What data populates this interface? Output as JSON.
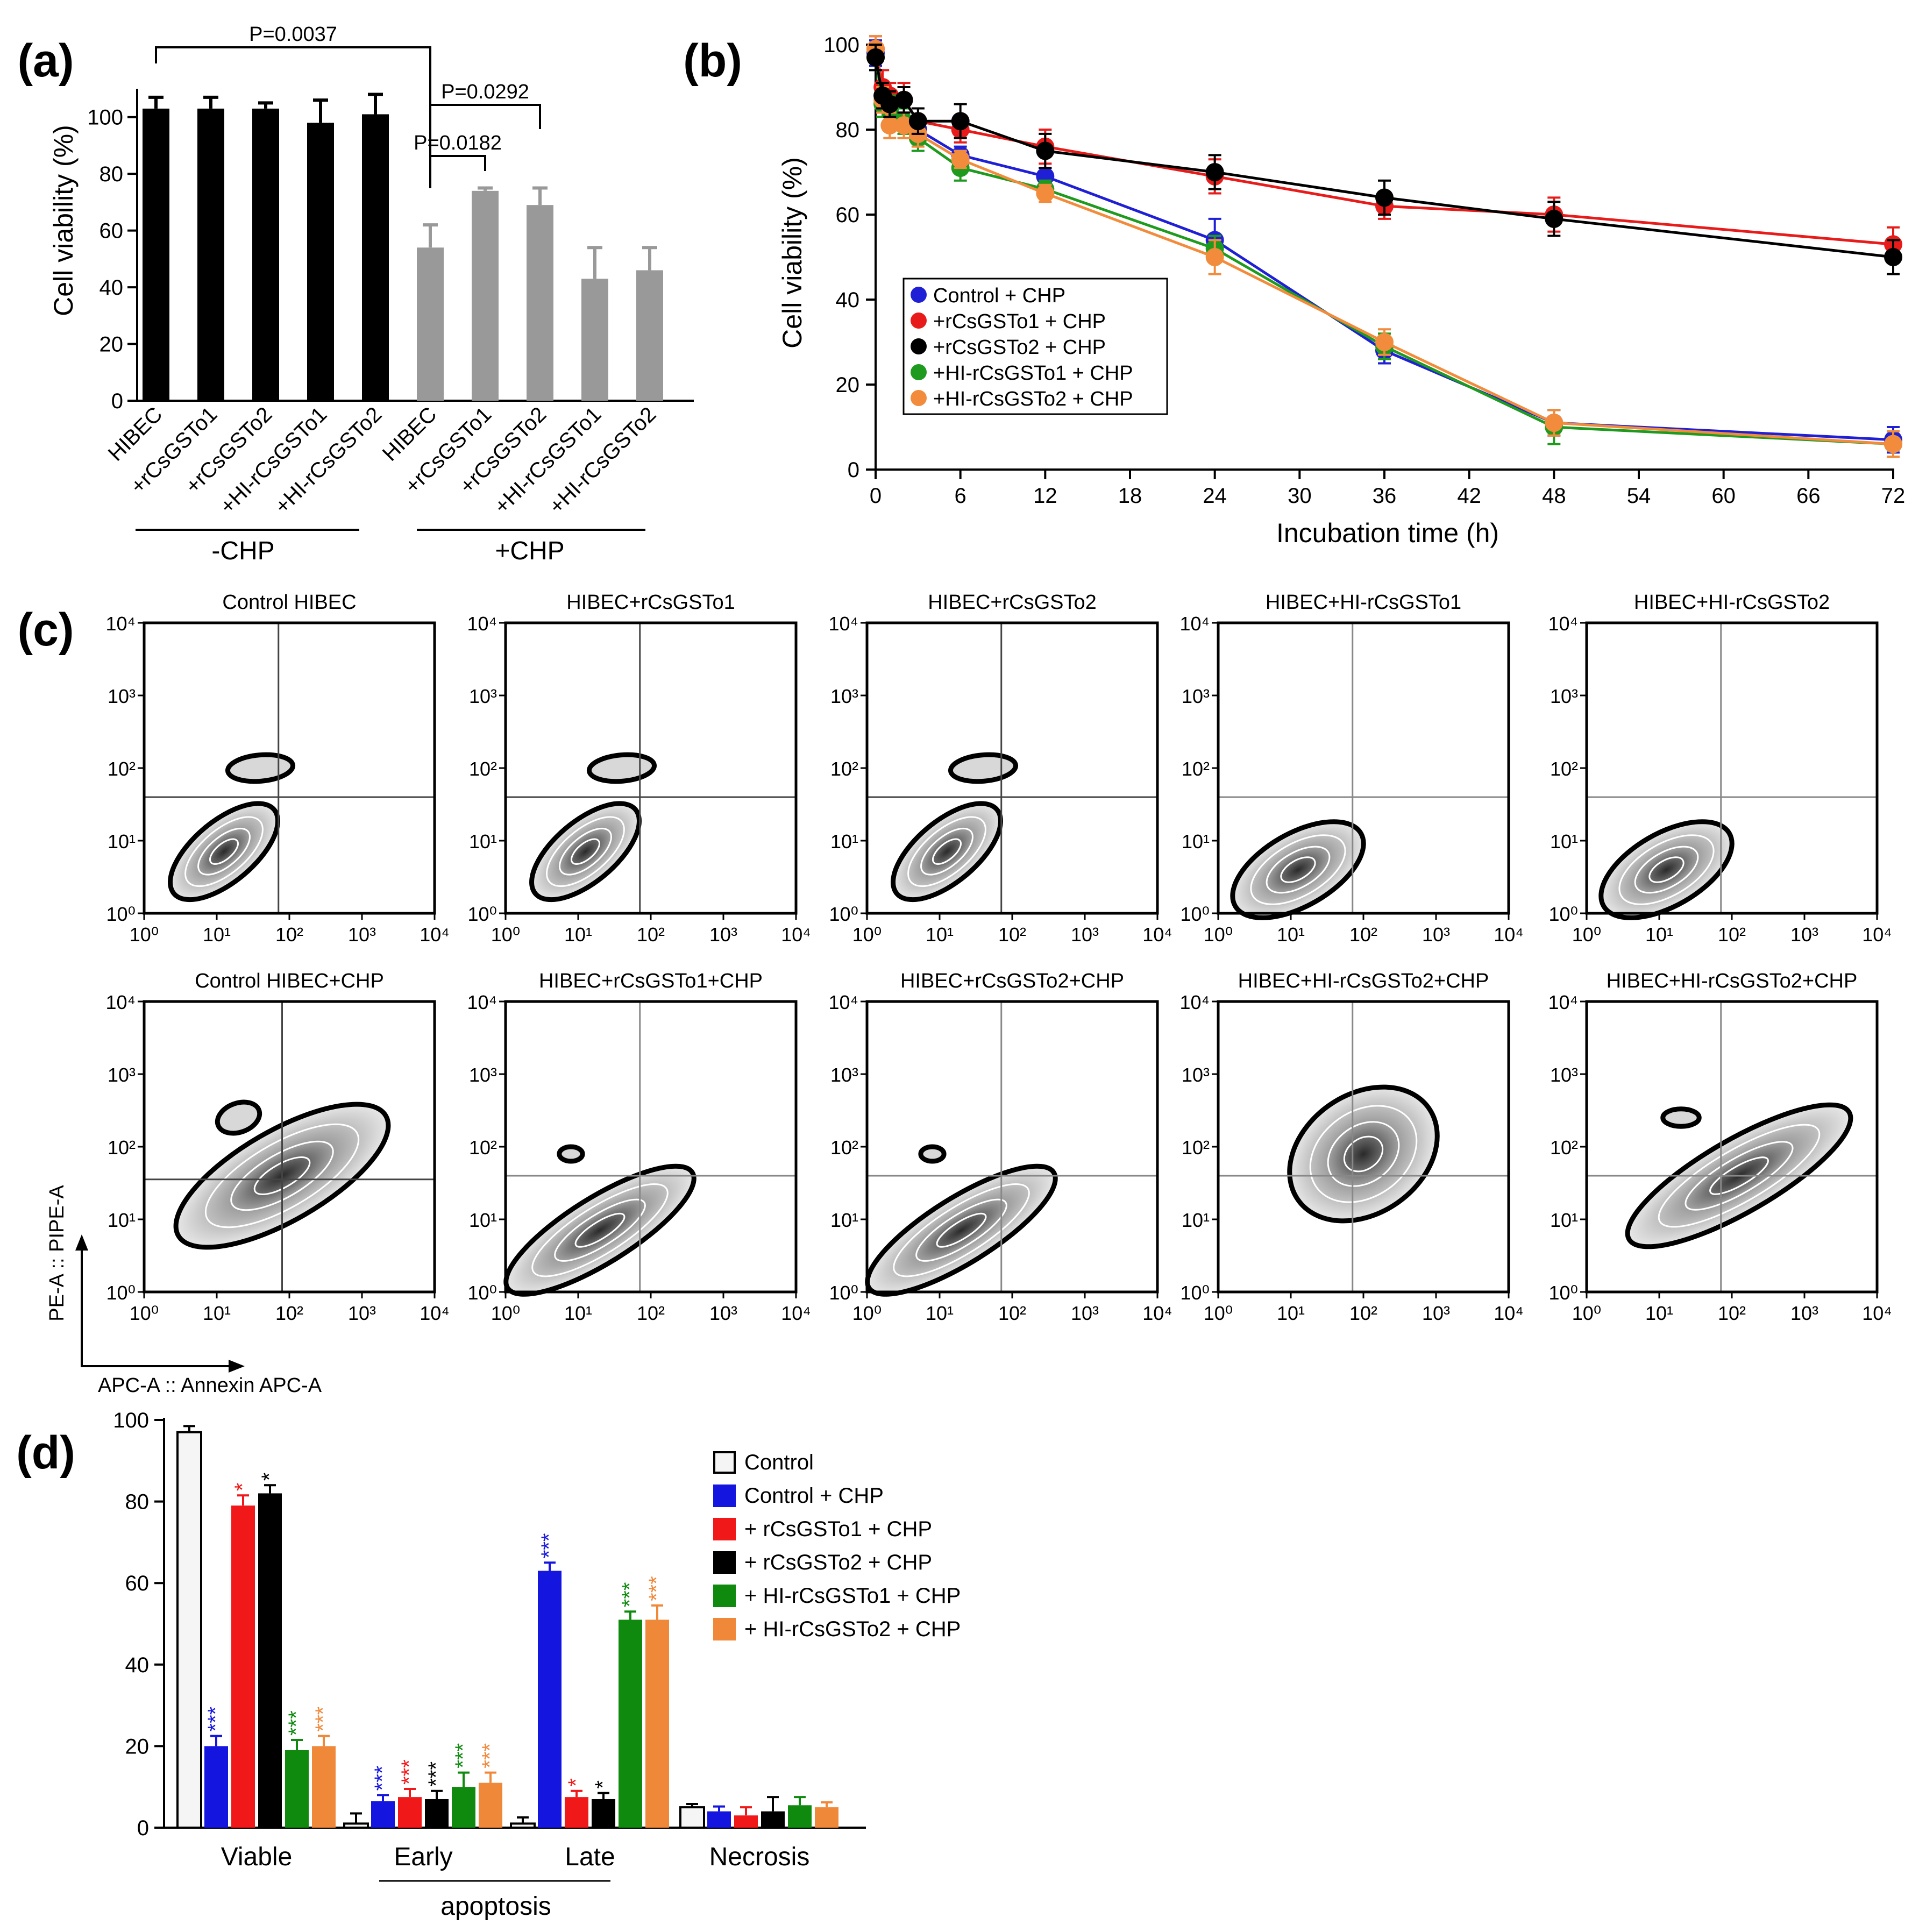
{
  "panel_labels": [
    "(a)",
    "(b)",
    "(c)",
    "(d)"
  ],
  "chart_data": [
    {
      "panel": "(a)",
      "type": "bar",
      "ylabel": "Cell viability (%)",
      "ylim": [
        0,
        110
      ],
      "yticks": [
        0,
        20,
        40,
        60,
        80,
        100
      ],
      "categories": [
        "HIBEC",
        "+rCsGSTo1",
        "+rCsGSTo2",
        "+HI-rCsGSTo1",
        "+HI-rCsGSTo2",
        "HIBEC",
        "+rCsGSTo1",
        "+rCsGSTo2",
        "+HI-rCsGSTo1",
        "+HI-rCsGSTo2"
      ],
      "values": [
        103,
        103,
        103,
        98,
        101,
        54,
        74,
        69,
        43,
        46
      ],
      "errors": [
        4,
        4,
        2,
        8,
        7,
        8,
        1,
        6,
        11,
        8
      ],
      "bar_colors": [
        "#000000",
        "#000000",
        "#000000",
        "#000000",
        "#000000",
        "#999999",
        "#999999",
        "#999999",
        "#999999",
        "#999999"
      ],
      "group_labels": [
        "-CHP",
        "+CHP"
      ],
      "significance": [
        {
          "label": "P=0.0037",
          "from": 0,
          "to": 5
        },
        {
          "label": "P=0.0292",
          "from": 5,
          "to": 7
        },
        {
          "label": "P=0.0182",
          "from": 5,
          "to": 6
        }
      ]
    },
    {
      "panel": "(b)",
      "type": "line",
      "xlabel": "Incubation time (h)",
      "ylabel": "Cell viability (%)",
      "xlim": [
        0,
        72
      ],
      "ylim": [
        0,
        100
      ],
      "xticks": [
        0,
        6,
        12,
        18,
        24,
        30,
        36,
        42,
        48,
        54,
        60,
        66,
        72
      ],
      "yticks": [
        0,
        20,
        40,
        60,
        80,
        100
      ],
      "x": [
        0,
        0.5,
        1,
        2,
        3,
        6,
        12,
        24,
        36,
        48,
        72
      ],
      "series": [
        {
          "name": "Control + CHP",
          "color": "#1f1fd6",
          "values": [
            98,
            88,
            85,
            82,
            80,
            74,
            69,
            54,
            28,
            11,
            7
          ],
          "errors": [
            3,
            3,
            2,
            2,
            2,
            2,
            2,
            5,
            3,
            3,
            3
          ]
        },
        {
          "name": "+rCsGSTo1 + CHP",
          "color": "#e81b1b",
          "values": [
            99,
            90,
            88,
            87,
            82,
            80,
            76,
            69,
            62,
            60,
            53
          ],
          "errors": [
            3,
            4,
            3,
            4,
            3,
            3,
            4,
            4,
            3,
            4,
            4
          ]
        },
        {
          "name": "+rCsGSTo2 + CHP",
          "color": "#000000",
          "values": [
            97,
            88,
            86,
            87,
            82,
            82,
            75,
            70,
            64,
            59,
            50
          ],
          "errors": [
            3,
            3,
            3,
            3,
            3,
            4,
            4,
            4,
            4,
            4,
            4
          ]
        },
        {
          "name": "+HI-rCsGSTo1 + CHP",
          "color": "#1e9a1e",
          "values": [
            97,
            86,
            85,
            82,
            78,
            71,
            66,
            52,
            29,
            10,
            6
          ],
          "errors": [
            3,
            3,
            3,
            3,
            3,
            3,
            2,
            3,
            3,
            4,
            3
          ]
        },
        {
          "name": "+HI-rCsGSTo2 + CHP",
          "color": "#f28c3c",
          "values": [
            99,
            87,
            81,
            81,
            79,
            73,
            65,
            50,
            30,
            11,
            6
          ],
          "errors": [
            3,
            3,
            3,
            3,
            3,
            2,
            2,
            4,
            3,
            3,
            3
          ]
        }
      ]
    },
    {
      "panel": "(c)",
      "type": "scatter",
      "description_axes": {
        "ylabel": "PE-A :: PIPE-A",
        "xlabel": "APC-A :: Annexin APC-A"
      },
      "tick_labels": [
        "10⁰",
        "10¹",
        "10²",
        "10³",
        "10⁴"
      ],
      "plots": [
        {
          "title": "Control HIBEC",
          "row": 0,
          "col": 0
        },
        {
          "title": "HIBEC+rCsGSTo1",
          "row": 0,
          "col": 1
        },
        {
          "title": "HIBEC+rCsGSTo2",
          "row": 0,
          "col": 2
        },
        {
          "title": "HIBEC+HI-rCsGSTo1",
          "row": 0,
          "col": 3
        },
        {
          "title": "HIBEC+HI-rCsGSTo2",
          "row": 0,
          "col": 4
        },
        {
          "title": "Control HIBEC+CHP",
          "row": 1,
          "col": 0
        },
        {
          "title": "HIBEC+rCsGSTo1+CHP",
          "row": 1,
          "col": 1
        },
        {
          "title": "HIBEC+rCsGSTo2+CHP",
          "row": 1,
          "col": 2
        },
        {
          "title": "HIBEC+HI-rCsGSTo2+CHP",
          "row": 1,
          "col": 3
        },
        {
          "title": "HIBEC+HI-rCsGSTo2+CHP",
          "row": 1,
          "col": 4
        }
      ]
    },
    {
      "panel": "(d)",
      "type": "bar",
      "ylim": [
        0,
        100
      ],
      "yticks": [
        0,
        20,
        40,
        60,
        80,
        100
      ],
      "categories": [
        "Viable",
        "Early",
        "Late",
        "Necrosis"
      ],
      "group_label": "apoptosis",
      "series": [
        {
          "name": "Control",
          "color": "#f5f5f5",
          "values": [
            97,
            1,
            1,
            5
          ],
          "errors": [
            1.5,
            2.5,
            1.5,
            0.8
          ],
          "stars": [
            "",
            "",
            "",
            ""
          ]
        },
        {
          "name": "Control + CHP",
          "color": "#1515e0",
          "values": [
            20,
            6.5,
            63,
            4
          ],
          "errors": [
            2.5,
            1.5,
            2,
            1.2
          ],
          "stars": [
            "***",
            "***",
            "***",
            ""
          ]
        },
        {
          "name": "+ rCsGSTo1 + CHP",
          "color": "#f01818",
          "values": [
            79,
            7.5,
            7.5,
            3
          ],
          "errors": [
            2.5,
            2,
            1.5,
            2
          ],
          "stars": [
            "*",
            "***",
            "*",
            ""
          ]
        },
        {
          "name": "+ rCsGSTo2 + CHP",
          "color": "#000000",
          "values": [
            82,
            7,
            7,
            4
          ],
          "errors": [
            2,
            2,
            1.5,
            3.5
          ],
          "stars": [
            "*",
            "***",
            "*",
            ""
          ]
        },
        {
          "name": "+ HI-rCsGSTo1 + CHP",
          "color": "#0f8a0f",
          "values": [
            19,
            10,
            51,
            5.5
          ],
          "errors": [
            2.5,
            3.5,
            2,
            2
          ],
          "stars": [
            "***",
            "***",
            "***",
            ""
          ]
        },
        {
          "name": "+ HI-rCsGSTo2 + CHP",
          "color": "#f0883a",
          "values": [
            20,
            11,
            51,
            5
          ],
          "errors": [
            2.5,
            2.5,
            3.5,
            1.2
          ],
          "stars": [
            "***",
            "***",
            "***",
            ""
          ]
        }
      ]
    }
  ]
}
